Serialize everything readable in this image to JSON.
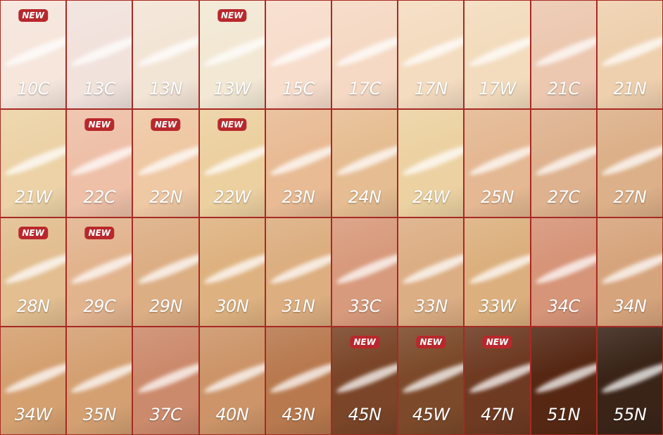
{
  "badge_label": "NEW",
  "shades": [
    {
      "name": "10C",
      "color": "#f6e6dc",
      "new": true
    },
    {
      "name": "13C",
      "color": "#f1e2dc",
      "new": false
    },
    {
      "name": "13N",
      "color": "#f3e5d6",
      "new": false
    },
    {
      "name": "13W",
      "color": "#f2e8d4",
      "new": true
    },
    {
      "name": "15C",
      "color": "#f7ddcc",
      "new": false
    },
    {
      "name": "17C",
      "color": "#f5d9c4",
      "new": false
    },
    {
      "name": "17N",
      "color": "#f4dcc0",
      "new": false
    },
    {
      "name": "17W",
      "color": "#f3dcbe",
      "new": false
    },
    {
      "name": "21C",
      "color": "#ecc8b0",
      "new": false
    },
    {
      "name": "21N",
      "color": "#eed0ae",
      "new": false
    },
    {
      "name": "21W",
      "color": "#ecd2a6",
      "new": false
    },
    {
      "name": "22C",
      "color": "#eec0a8",
      "new": true
    },
    {
      "name": "22N",
      "color": "#efc8a4",
      "new": true
    },
    {
      "name": "22W",
      "color": "#ecd0a0",
      "new": true
    },
    {
      "name": "23N",
      "color": "#e8bb94",
      "new": false
    },
    {
      "name": "24N",
      "color": "#e6bd92",
      "new": false
    },
    {
      "name": "24W",
      "color": "#ecd2a2",
      "new": false
    },
    {
      "name": "25N",
      "color": "#e4b892",
      "new": false
    },
    {
      "name": "27C",
      "color": "#deb28e",
      "new": false
    },
    {
      "name": "27N",
      "color": "#dcb088",
      "new": false
    },
    {
      "name": "28N",
      "color": "#e2be90",
      "new": true
    },
    {
      "name": "29C",
      "color": "#e2b48e",
      "new": true
    },
    {
      "name": "29N",
      "color": "#dcae84",
      "new": false
    },
    {
      "name": "30N",
      "color": "#deb280",
      "new": false
    },
    {
      "name": "31N",
      "color": "#dcae80",
      "new": false
    },
    {
      "name": "33C",
      "color": "#d89a7c",
      "new": false
    },
    {
      "name": "33N",
      "color": "#dcae84",
      "new": false
    },
    {
      "name": "33W",
      "color": "#dcb07e",
      "new": false
    },
    {
      "name": "34C",
      "color": "#d69478",
      "new": false
    },
    {
      "name": "34N",
      "color": "#d6a47c",
      "new": false
    },
    {
      "name": "34W",
      "color": "#d4a070",
      "new": false
    },
    {
      "name": "35N",
      "color": "#d4a072",
      "new": false
    },
    {
      "name": "37C",
      "color": "#cc8a6c",
      "new": false
    },
    {
      "name": "40N",
      "color": "#cc9468",
      "new": false
    },
    {
      "name": "43N",
      "color": "#b8794e",
      "new": false
    },
    {
      "name": "45N",
      "color": "#7a4528",
      "new": true
    },
    {
      "name": "45W",
      "color": "#7c4a2a",
      "new": true
    },
    {
      "name": "47N",
      "color": "#6e3a22",
      "new": true
    },
    {
      "name": "51N",
      "color": "#562814",
      "new": false
    },
    {
      "name": "55N",
      "color": "#3a2418",
      "new": false
    }
  ],
  "colors": {
    "border": "#a82a24",
    "badge": "#b8282c"
  }
}
